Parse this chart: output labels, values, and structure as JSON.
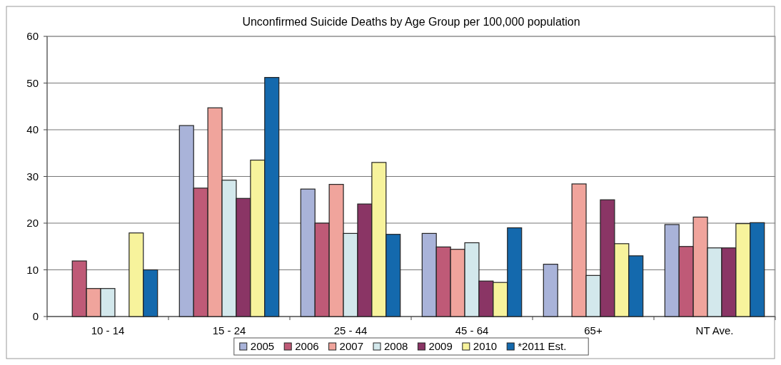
{
  "chart_data": {
    "type": "bar",
    "title": "Unconfirmed Suicide Deaths by Age Group per 100,000 population",
    "categories": [
      "10 - 14",
      "15 - 24",
      "25 - 44",
      "45 - 64",
      "65+",
      "NT Ave."
    ],
    "series": [
      {
        "name": "2005",
        "color": "#a9b3d9",
        "values": [
          null,
          40.9,
          27.3,
          17.8,
          11.2,
          19.7
        ]
      },
      {
        "name": "2006",
        "color": "#bf5a77",
        "values": [
          11.9,
          27.5,
          20,
          14.9,
          null,
          15
        ]
      },
      {
        "name": "2007",
        "color": "#f0a49c",
        "values": [
          6,
          44.7,
          28.3,
          14.4,
          28.4,
          21.3
        ]
      },
      {
        "name": "2008",
        "color": "#d3e8ec",
        "values": [
          6,
          29.2,
          17.8,
          15.8,
          8.8,
          14.7
        ]
      },
      {
        "name": "2009",
        "color": "#8a3565",
        "values": [
          null,
          25.3,
          24.1,
          7.6,
          25,
          14.7
        ]
      },
      {
        "name": "2010",
        "color": "#f7f39c",
        "values": [
          17.9,
          33.5,
          33,
          7.3,
          15.6,
          19.9
        ]
      },
      {
        "name": "*2011 Est.",
        "color": "#1469ad",
        "values": [
          10,
          51.2,
          17.6,
          19,
          13,
          20.1
        ]
      }
    ],
    "ylim": [
      0,
      60
    ],
    "yticks": [
      0,
      10,
      20,
      30,
      40,
      50,
      60
    ],
    "grid": "y",
    "legend": "bottom"
  }
}
